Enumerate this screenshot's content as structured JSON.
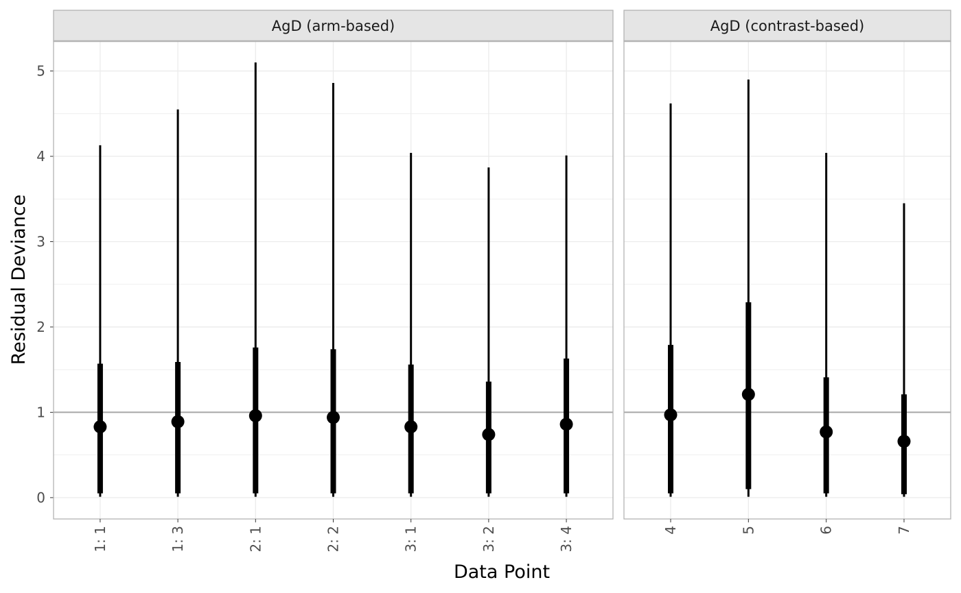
{
  "chart_data": {
    "type": "pointrange",
    "xlabel": "Data Point",
    "ylabel": "Residual Deviance",
    "ylim": [
      -0.25,
      5.35
    ],
    "yticks": [
      0,
      1,
      2,
      3,
      4,
      5
    ],
    "reference_line": 1,
    "grid": true,
    "colors": {
      "mark": "#000000",
      "reference_line": "#a6a6a6",
      "strip_fill": "#e5e5e5",
      "panel_border": "#b3b3b3",
      "grid": "#ebebeb"
    },
    "panels": [
      {
        "title": "AgD (arm-based)",
        "points": [
          {
            "label": "1: 1",
            "mean": 0.83,
            "inner_low": 0.05,
            "inner_high": 1.57,
            "outer_low": 0.01,
            "outer_high": 4.13
          },
          {
            "label": "1: 3",
            "mean": 0.89,
            "inner_low": 0.05,
            "inner_high": 1.59,
            "outer_low": 0.01,
            "outer_high": 4.55
          },
          {
            "label": "2: 1",
            "mean": 0.96,
            "inner_low": 0.05,
            "inner_high": 1.76,
            "outer_low": 0.01,
            "outer_high": 5.1
          },
          {
            "label": "2: 2",
            "mean": 0.94,
            "inner_low": 0.05,
            "inner_high": 1.74,
            "outer_low": 0.01,
            "outer_high": 4.86
          },
          {
            "label": "3: 1",
            "mean": 0.83,
            "inner_low": 0.05,
            "inner_high": 1.56,
            "outer_low": 0.01,
            "outer_high": 4.04
          },
          {
            "label": "3: 2",
            "mean": 0.74,
            "inner_low": 0.05,
            "inner_high": 1.36,
            "outer_low": 0.01,
            "outer_high": 3.87
          },
          {
            "label": "3: 4",
            "mean": 0.86,
            "inner_low": 0.05,
            "inner_high": 1.63,
            "outer_low": 0.01,
            "outer_high": 4.01
          }
        ]
      },
      {
        "title": "AgD (contrast-based)",
        "points": [
          {
            "label": "4",
            "mean": 0.97,
            "inner_low": 0.05,
            "inner_high": 1.79,
            "outer_low": 0.01,
            "outer_high": 4.62
          },
          {
            "label": "5",
            "mean": 1.21,
            "inner_low": 0.1,
            "inner_high": 2.29,
            "outer_low": 0.01,
            "outer_high": 4.9
          },
          {
            "label": "6",
            "mean": 0.77,
            "inner_low": 0.05,
            "inner_high": 1.41,
            "outer_low": 0.01,
            "outer_high": 4.04
          },
          {
            "label": "7",
            "mean": 0.66,
            "inner_low": 0.04,
            "inner_high": 1.21,
            "outer_low": 0.01,
            "outer_high": 3.45
          }
        ]
      }
    ]
  }
}
